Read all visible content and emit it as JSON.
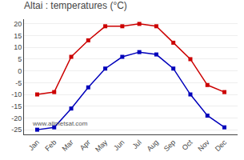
{
  "chart_data": {
    "type": "line",
    "title": "Altai : temperatures (°C)",
    "categories": [
      "Jan",
      "Feb",
      "Mar",
      "Apr",
      "May",
      "Jun",
      "Jul",
      "Aug",
      "Sep",
      "Oct",
      "Nov",
      "Dec"
    ],
    "series": [
      {
        "color": "#cc0000",
        "values": [
          -10,
          -9,
          6,
          13,
          19,
          19,
          20,
          19,
          12,
          5,
          -6,
          -9
        ]
      },
      {
        "color": "#0000bb",
        "values": [
          -25,
          -24,
          -16,
          -7,
          1,
          6,
          8,
          7,
          1,
          -10,
          -19,
          -24
        ]
      }
    ],
    "ylim": [
      -27,
      22
    ],
    "yticks": [
      -25,
      -20,
      -15,
      -10,
      -5,
      0,
      5,
      10,
      15,
      20
    ],
    "grid": "y",
    "marker": "square",
    "annotations": [
      "www.allmetsat.com"
    ]
  }
}
